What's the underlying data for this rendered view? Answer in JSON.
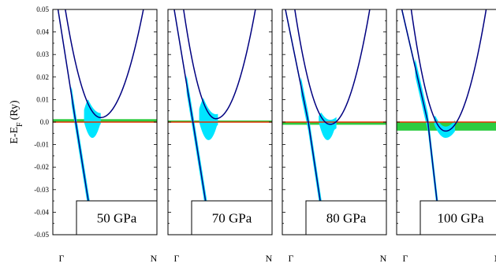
{
  "chart_data": {
    "type": "line",
    "ylabel": "E-E",
    "ylabel_sub": "F",
    "ylabel_unit": "(Ry)",
    "ylim": [
      -0.05,
      0.05
    ],
    "yticks": [
      0.05,
      0.04,
      0.03,
      0.02,
      0.01,
      0.0,
      -0.01,
      -0.02,
      -0.03,
      -0.04,
      -0.05
    ],
    "ytick_labels": [
      "0.05",
      "0.04",
      "0.03",
      "0.02",
      "0.01",
      "0.0",
      "-0.01",
      "-0.02",
      "-0.03",
      "-0.04",
      "-0.05"
    ],
    "xlim": [
      0,
      1
    ],
    "k_start_label": "Γ",
    "k_end_label": "N",
    "colors": {
      "band": "#000080",
      "band_width": "#00e5ff",
      "fermi": "#e53000",
      "fermi_smear": "#2ecc40"
    },
    "panels": [
      {
        "pressure_label": "50 GPa",
        "fermi_smear_range": [
          0.0,
          0.0013
        ],
        "parabola": {
          "left_top": 0.12,
          "right_top": 0.87,
          "vertex_x": 0.46,
          "vertex_y": 0.002
        },
        "steep_band": [
          [
            0.05,
            0.05
          ],
          [
            0.22,
            0.0
          ],
          [
            0.4,
            -0.052
          ]
        ],
        "width_lobe": {
          "x": [
            0.3,
            0.46
          ],
          "top": 0.012,
          "bottom": -0.007
        }
      },
      {
        "pressure_label": "70 GPa",
        "fermi_smear_range": [
          0.0,
          0.0007
        ],
        "parabola": {
          "left_top": 0.15,
          "right_top": 0.84,
          "vertex_x": 0.46,
          "vertex_y": 0.0015
        },
        "steep_band": [
          [
            0.06,
            0.05
          ],
          [
            0.24,
            0.0
          ],
          [
            0.42,
            -0.052
          ]
        ],
        "width_lobe": {
          "x": [
            0.3,
            0.48
          ],
          "top": 0.013,
          "bottom": -0.008
        }
      },
      {
        "pressure_label": "80 GPa",
        "fermi_smear_range": [
          -0.0012,
          0.0
        ],
        "parabola": {
          "left_top": 0.12,
          "right_top": 0.84,
          "vertex_x": 0.46,
          "vertex_y": -0.001
        },
        "steep_band": [
          [
            0.03,
            0.05
          ],
          [
            0.25,
            0.0
          ],
          [
            0.42,
            -0.052
          ]
        ],
        "width_lobe": {
          "x": [
            0.35,
            0.52
          ],
          "top": 0.006,
          "bottom": -0.008
        }
      },
      {
        "pressure_label": "100 GPa",
        "fermi_smear_range": [
          -0.0038,
          0.0
        ],
        "parabola": {
          "left_top": 0.14,
          "right_top": 0.86,
          "vertex_x": 0.47,
          "vertex_y": -0.004
        },
        "steep_band": [
          [
            0.05,
            0.05
          ],
          [
            0.3,
            0.0
          ],
          [
            0.43,
            -0.052
          ]
        ],
        "width_lobe": {
          "x": [
            0.36,
            0.56
          ],
          "top": 0.005,
          "bottom": -0.006
        }
      }
    ]
  }
}
